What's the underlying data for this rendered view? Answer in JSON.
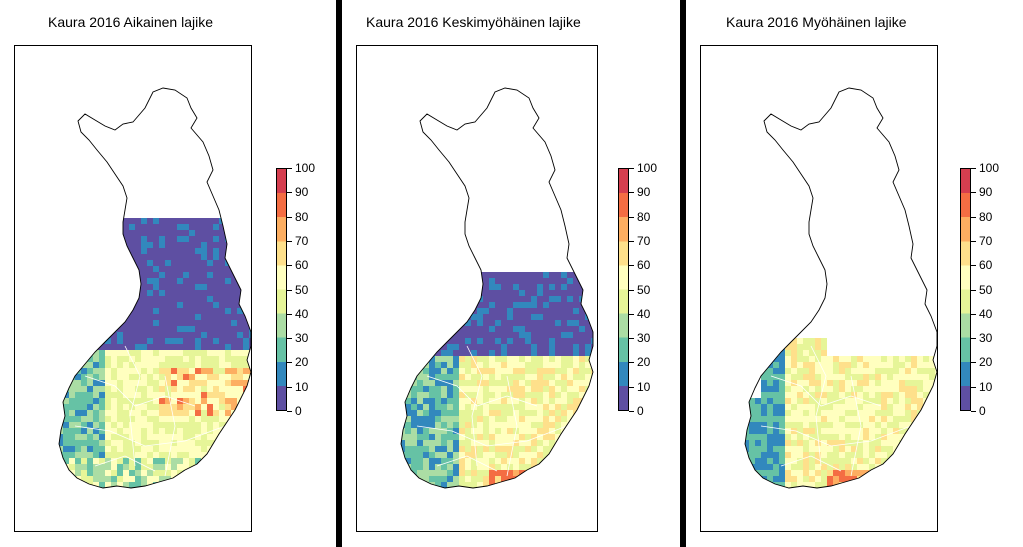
{
  "panels": [
    {
      "title": "Kaura 2016 Aikainen lajike",
      "variant": "early"
    },
    {
      "title": "Kaura 2016 Keskimyöhäinen lajike",
      "variant": "mid"
    },
    {
      "title": "Kaura 2016 Myöhäinen lajike",
      "variant": "late"
    }
  ],
  "legend": {
    "ticks": [
      "0",
      "10",
      "20",
      "30",
      "40",
      "50",
      "60",
      "70",
      "80",
      "90",
      "100"
    ],
    "colors": [
      "#5E4FA2",
      "#3288BD",
      "#66C2A5",
      "#ABDDA4",
      "#E6F598",
      "#FFFFBF",
      "#FEE08B",
      "#FDAE61",
      "#F46D43",
      "#D53E4F"
    ]
  },
  "colors": {
    "divider": "#000000",
    "outline": "#000000"
  }
}
